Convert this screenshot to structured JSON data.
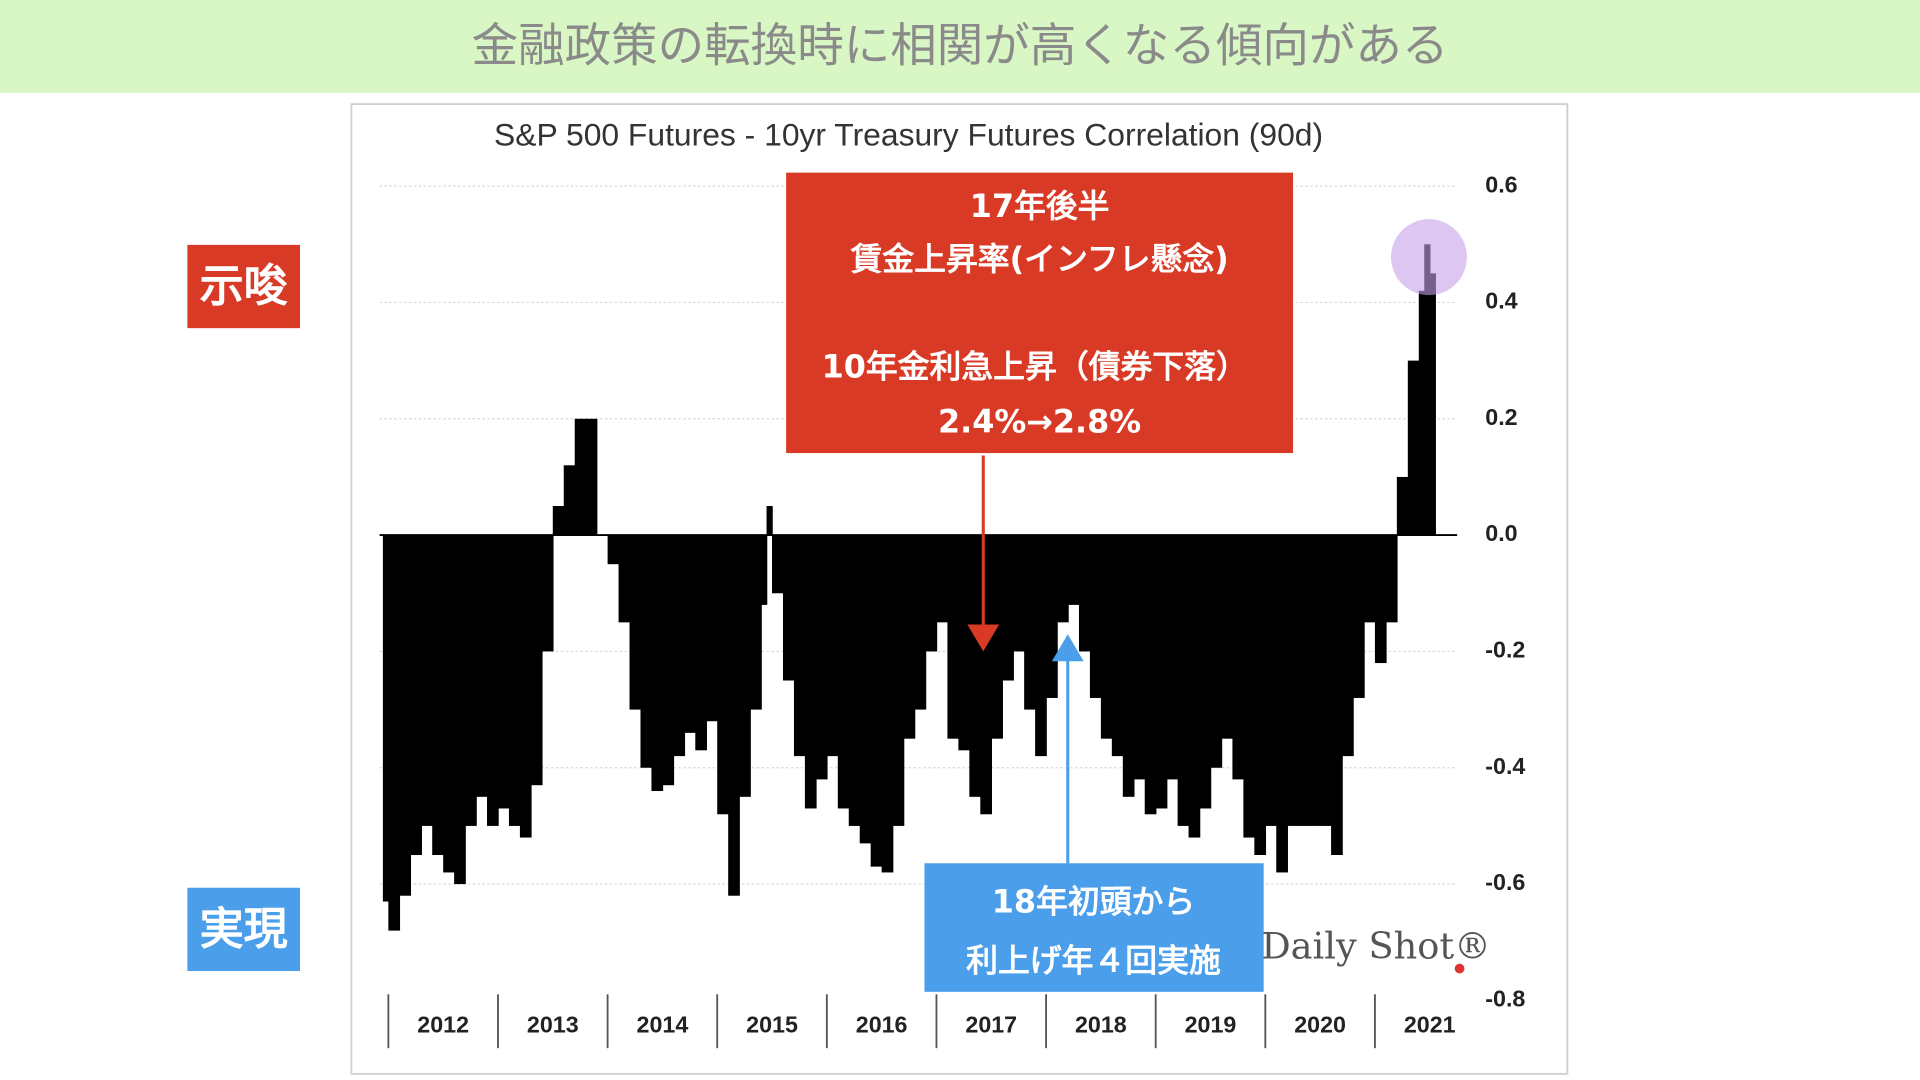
{
  "header": {
    "title": "金融政策の転換時に相関が高くなる傾向がある"
  },
  "side_labels": [
    "示唆",
    "実現"
  ],
  "chart_data": {
    "type": "bar",
    "title": "S&P 500 Futures - 10yr Treasury Futures Correlation (90d)",
    "x": [
      2011.95,
      2012.0,
      2012.1,
      2012.2,
      2012.3,
      2012.4,
      2012.5,
      2012.6,
      2012.7,
      2012.8,
      2012.9,
      2013.0,
      2013.1,
      2013.2,
      2013.3,
      2013.4,
      2013.5,
      2013.6,
      2013.7,
      2013.8,
      2013.9,
      2014.0,
      2014.1,
      2014.2,
      2014.3,
      2014.4,
      2014.5,
      2014.6,
      2014.7,
      2014.8,
      2014.9,
      2015.0,
      2015.1,
      2015.2,
      2015.3,
      2015.4,
      2015.45,
      2015.5,
      2015.6,
      2015.7,
      2015.8,
      2015.9,
      2016.0,
      2016.1,
      2016.2,
      2016.3,
      2016.4,
      2016.5,
      2016.6,
      2016.7,
      2016.8,
      2016.9,
      2017.0,
      2017.1,
      2017.2,
      2017.3,
      2017.4,
      2017.5,
      2017.6,
      2017.7,
      2017.8,
      2017.9,
      2018.0,
      2018.1,
      2018.2,
      2018.3,
      2018.4,
      2018.5,
      2018.6,
      2018.7,
      2018.8,
      2018.9,
      2019.0,
      2019.1,
      2019.2,
      2019.3,
      2019.4,
      2019.5,
      2019.6,
      2019.7,
      2019.8,
      2019.9,
      2020.0,
      2020.1,
      2020.2,
      2020.3,
      2020.4,
      2020.5,
      2020.6,
      2020.7,
      2020.8,
      2020.9,
      2021.0,
      2021.1,
      2021.2,
      2021.3,
      2021.4,
      2021.45,
      2021.5
    ],
    "series": [
      {
        "color": "#000000",
        "values": [
          -0.63,
          -0.68,
          -0.62,
          -0.55,
          -0.5,
          -0.55,
          -0.58,
          -0.6,
          -0.5,
          -0.45,
          -0.5,
          -0.47,
          -0.5,
          -0.52,
          -0.43,
          -0.2,
          0.05,
          0.12,
          0.2,
          0.2,
          0.0,
          -0.05,
          -0.15,
          -0.3,
          -0.4,
          -0.44,
          -0.43,
          -0.38,
          -0.34,
          -0.37,
          -0.32,
          -0.48,
          -0.62,
          -0.45,
          -0.3,
          -0.12,
          0.05,
          -0.1,
          -0.25,
          -0.38,
          -0.47,
          -0.42,
          -0.38,
          -0.47,
          -0.5,
          -0.53,
          -0.57,
          -0.58,
          -0.5,
          -0.35,
          -0.3,
          -0.2,
          -0.15,
          -0.35,
          -0.37,
          -0.45,
          -0.48,
          -0.35,
          -0.25,
          -0.2,
          -0.3,
          -0.38,
          -0.28,
          -0.15,
          -0.12,
          -0.2,
          -0.28,
          -0.35,
          -0.38,
          -0.45,
          -0.42,
          -0.48,
          -0.47,
          -0.42,
          -0.5,
          -0.52,
          -0.47,
          -0.4,
          -0.35,
          -0.42,
          -0.52,
          -0.55,
          -0.5,
          -0.58,
          -0.5,
          -0.5,
          -0.5,
          -0.5,
          -0.55,
          -0.38,
          -0.28,
          -0.15,
          -0.22,
          -0.15,
          0.1,
          0.3,
          0.42,
          0.5,
          0.45
        ]
      }
    ],
    "xlim": [
      2011.92,
      2021.75
    ],
    "ylim": [
      -0.8,
      0.6
    ],
    "yticks": [
      0.6,
      0.4,
      0.2,
      {
        "value": 0,
        "label": "0.0"
      },
      -0.2,
      -0.4,
      -0.6,
      -0.8
    ],
    "xticks": [
      {
        "value": 2012.5,
        "label": "2012"
      },
      {
        "value": 2013.5,
        "label": "2013"
      },
      {
        "value": 2014.5,
        "label": "2014"
      },
      {
        "value": 2015.5,
        "label": "2015"
      },
      {
        "value": 2016.5,
        "label": "2016"
      },
      {
        "value": 2017.5,
        "label": "2017"
      },
      {
        "value": 2018.5,
        "label": "2018"
      },
      {
        "value": 2019.5,
        "label": "2019"
      },
      {
        "value": 2020.5,
        "label": "2020"
      },
      {
        "value": 2021.5,
        "label": "2021"
      }
    ],
    "grid": true,
    "source": "Daily Shot®",
    "annotations": [
      {
        "color": "#d93a26",
        "lines": [
          "17年後半",
          "賃金上昇率(インフレ懸念)",
          "10年金利急上昇（債券下落）",
          "2.4%→2.8%"
        ]
      },
      {
        "color": "#4a9eea",
        "lines": [
          "18年初頭から",
          "利上げ年４回実施"
        ]
      }
    ]
  }
}
